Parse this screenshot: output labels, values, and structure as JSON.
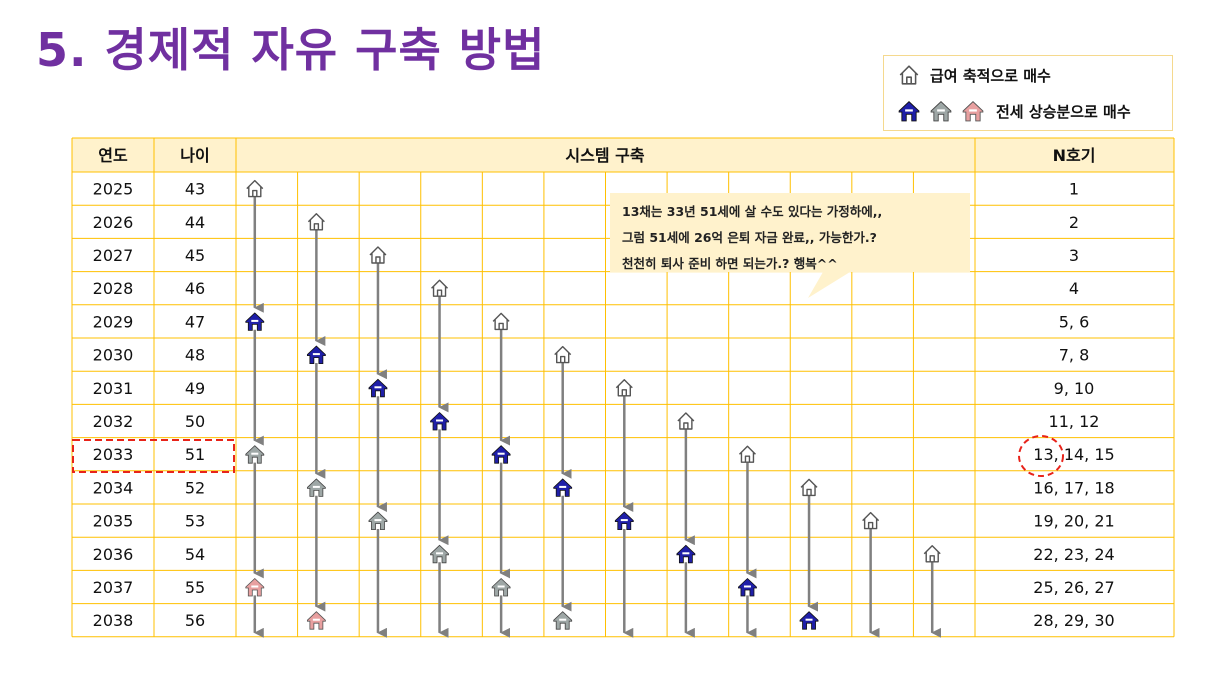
{
  "title": "5. 경제적 자유 구축 방법",
  "legend": {
    "salary": {
      "label": "급여 축적으로 매수",
      "icon": "house-outline-icon"
    },
    "jeonse": {
      "label": "전세 상승분으로 매수",
      "icons": [
        "house-blue-icon",
        "house-gray-icon",
        "house-pink-icon"
      ]
    }
  },
  "table": {
    "headers": {
      "year": "연도",
      "age": "나이",
      "system": "시스템 구축",
      "nth": "N호기"
    },
    "rows": [
      {
        "year": "2025",
        "age": "43",
        "nth": "1"
      },
      {
        "year": "2026",
        "age": "44",
        "nth": "2"
      },
      {
        "year": "2027",
        "age": "45",
        "nth": "3"
      },
      {
        "year": "2028",
        "age": "46",
        "nth": "4"
      },
      {
        "year": "2029",
        "age": "47",
        "nth": "5, 6"
      },
      {
        "year": "2030",
        "age": "48",
        "nth": "7, 8"
      },
      {
        "year": "2031",
        "age": "49",
        "nth": "9, 10"
      },
      {
        "year": "2032",
        "age": "50",
        "nth": "11, 12"
      },
      {
        "year": "2033",
        "age": "51",
        "nth": "13, 14, 15"
      },
      {
        "year": "2034",
        "age": "52",
        "nth": "16, 17, 18"
      },
      {
        "year": "2035",
        "age": "53",
        "nth": "19, 20, 21"
      },
      {
        "year": "2036",
        "age": "54",
        "nth": "22, 23, 24"
      },
      {
        "year": "2037",
        "age": "55",
        "nth": "25, 26, 27"
      },
      {
        "year": "2038",
        "age": "56",
        "nth": "28, 29, 30"
      }
    ],
    "highlight_row": 8
  },
  "callout": {
    "lines": [
      "13채는 33년 51세에 살 수도 있다는 가정하에,,",
      "그럼 51세에 26억 은퇴 자금 완료,, 가능한가.?",
      "천천히 퇴사 준비 하면 되는가.? 행복^^"
    ]
  },
  "colors": {
    "title": "#7030A0",
    "header_bg": "#FFF2CC",
    "grid_line": "#FFC000",
    "house_blue": "#1F1FA8",
    "house_gray": "#9EA7A6",
    "house_pink": "#E8A0A0",
    "arrow": "#808080",
    "highlight": "#E8231A"
  },
  "system": {
    "columns": 12,
    "houses": [
      {
        "col": 0,
        "row": 0,
        "type": "outline"
      },
      {
        "col": 1,
        "row": 1,
        "type": "outline"
      },
      {
        "col": 2,
        "row": 2,
        "type": "outline"
      },
      {
        "col": 3,
        "row": 3,
        "type": "outline"
      },
      {
        "col": 4,
        "row": 4,
        "type": "outline"
      },
      {
        "col": 5,
        "row": 5,
        "type": "outline"
      },
      {
        "col": 6,
        "row": 6,
        "type": "outline"
      },
      {
        "col": 7,
        "row": 7,
        "type": "outline"
      },
      {
        "col": 8,
        "row": 8,
        "type": "outline"
      },
      {
        "col": 9,
        "row": 9,
        "type": "outline"
      },
      {
        "col": 10,
        "row": 10,
        "type": "outline"
      },
      {
        "col": 11,
        "row": 11,
        "type": "outline"
      },
      {
        "col": 0,
        "row": 4,
        "type": "blue"
      },
      {
        "col": 1,
        "row": 5,
        "type": "blue"
      },
      {
        "col": 2,
        "row": 6,
        "type": "blue"
      },
      {
        "col": 3,
        "row": 7,
        "type": "blue"
      },
      {
        "col": 4,
        "row": 8,
        "type": "blue"
      },
      {
        "col": 5,
        "row": 9,
        "type": "blue"
      },
      {
        "col": 6,
        "row": 10,
        "type": "blue"
      },
      {
        "col": 7,
        "row": 11,
        "type": "blue"
      },
      {
        "col": 8,
        "row": 12,
        "type": "blue"
      },
      {
        "col": 9,
        "row": 13,
        "type": "blue"
      },
      {
        "col": 0,
        "row": 8,
        "type": "gray"
      },
      {
        "col": 1,
        "row": 9,
        "type": "gray"
      },
      {
        "col": 2,
        "row": 10,
        "type": "gray"
      },
      {
        "col": 3,
        "row": 11,
        "type": "gray"
      },
      {
        "col": 4,
        "row": 12,
        "type": "gray"
      },
      {
        "col": 5,
        "row": 13,
        "type": "gray"
      },
      {
        "col": 0,
        "row": 12,
        "type": "pink"
      },
      {
        "col": 1,
        "row": 13,
        "type": "pink"
      }
    ],
    "arrows": [
      {
        "col": 0,
        "from": 0,
        "to": 4
      },
      {
        "col": 0,
        "from": 4,
        "to": 8
      },
      {
        "col": 0,
        "from": 8,
        "to": 12
      },
      {
        "col": 0,
        "from": 12,
        "to": 14
      },
      {
        "col": 1,
        "from": 1,
        "to": 5
      },
      {
        "col": 1,
        "from": 5,
        "to": 9
      },
      {
        "col": 1,
        "from": 9,
        "to": 13
      },
      {
        "col": 2,
        "from": 2,
        "to": 6
      },
      {
        "col": 2,
        "from": 6,
        "to": 10
      },
      {
        "col": 2,
        "from": 10,
        "to": 14
      },
      {
        "col": 3,
        "from": 3,
        "to": 7
      },
      {
        "col": 3,
        "from": 7,
        "to": 11
      },
      {
        "col": 3,
        "from": 11,
        "to": 14
      },
      {
        "col": 4,
        "from": 4,
        "to": 8
      },
      {
        "col": 4,
        "from": 8,
        "to": 12
      },
      {
        "col": 4,
        "from": 12,
        "to": 14
      },
      {
        "col": 5,
        "from": 5,
        "to": 9
      },
      {
        "col": 5,
        "from": 9,
        "to": 13
      },
      {
        "col": 6,
        "from": 6,
        "to": 10
      },
      {
        "col": 6,
        "from": 10,
        "to": 14
      },
      {
        "col": 7,
        "from": 7,
        "to": 11
      },
      {
        "col": 7,
        "from": 11,
        "to": 14
      },
      {
        "col": 8,
        "from": 8,
        "to": 12
      },
      {
        "col": 8,
        "from": 12,
        "to": 14
      },
      {
        "col": 9,
        "from": 9,
        "to": 13
      },
      {
        "col": 10,
        "from": 10,
        "to": 14
      },
      {
        "col": 11,
        "from": 11,
        "to": 14
      }
    ]
  }
}
